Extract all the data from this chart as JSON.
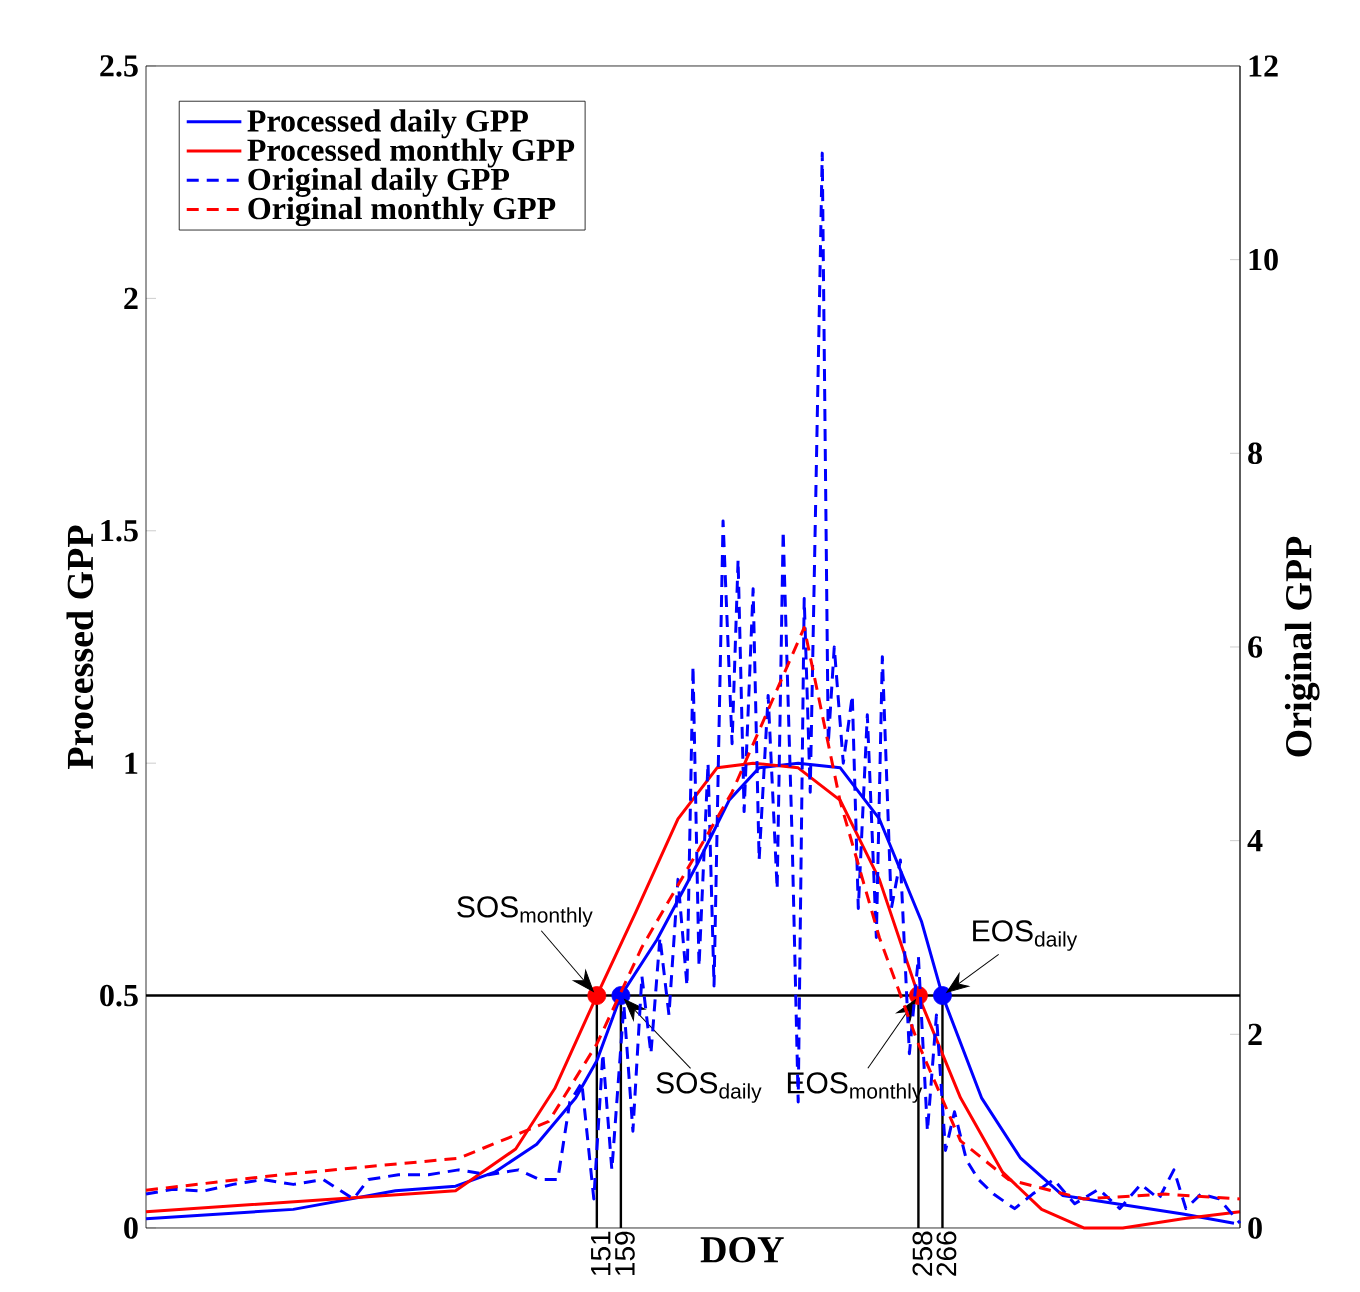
{
  "chart_data": {
    "type": "line",
    "xlabel": "DOY",
    "ylabel": "Processed GPP",
    "y2label": "Original GPP",
    "xlim": [
      1,
      365
    ],
    "xticks": [
      151,
      159,
      258,
      266
    ],
    "ylim": [
      0,
      2.5
    ],
    "yticks": [
      0,
      0.5,
      1,
      1.5,
      2,
      2.5
    ],
    "y2lim": [
      0,
      12
    ],
    "y2ticks": [
      0,
      2,
      4,
      6,
      8,
      10,
      12
    ],
    "legend": "top left",
    "marker": "none",
    "series": [
      {
        "name": "Processed daily GPP",
        "color": "#0000ff",
        "line_style": "solid",
        "x": [
          1,
          50,
          84,
          104,
          117,
          131,
          144,
          151,
          159,
          171,
          185,
          195,
          205,
          218,
          232,
          245,
          259,
          266,
          279,
          292,
          306,
          326,
          346,
          363
        ],
        "values": [
          0.02,
          0.04,
          0.08,
          0.09,
          0.12,
          0.18,
          0.28,
          0.36,
          0.5,
          0.62,
          0.79,
          0.92,
          0.99,
          1.0,
          0.99,
          0.88,
          0.66,
          0.5,
          0.28,
          0.15,
          0.07,
          0.05,
          0.03,
          0.01
        ]
      },
      {
        "name": "Processed monthly GPP",
        "color": "#ff0000",
        "line_style": "solid",
        "x": [
          1,
          104,
          124,
          137,
          151,
          164,
          178,
          191,
          203,
          218,
          232,
          245,
          258,
          272,
          286,
          299,
          313,
          326,
          346,
          365
        ],
        "values": [
          0.035,
          0.08,
          0.17,
          0.3,
          0.5,
          0.68,
          0.88,
          0.99,
          1.0,
          0.99,
          0.92,
          0.75,
          0.5,
          0.28,
          0.12,
          0.04,
          0.0,
          0.0,
          0.02,
          0.035
        ]
      },
      {
        "name": "Original daily GPP",
        "color": "#0000ff",
        "line_style": "dashed",
        "axis": "y2",
        "x": [
          1,
          10,
          20,
          30,
          40,
          50,
          60,
          70,
          75,
          85,
          95,
          105,
          115,
          125,
          132,
          138,
          142,
          146,
          150,
          153,
          156,
          160,
          163,
          166,
          169,
          172,
          175,
          178,
          181,
          183,
          185,
          188,
          190,
          193,
          196,
          198,
          200,
          203,
          205,
          208,
          211,
          213,
          216,
          218,
          220,
          222,
          224,
          226,
          228,
          230,
          233,
          236,
          238,
          241,
          244,
          246,
          249,
          252,
          255,
          258,
          261,
          264,
          267,
          270,
          274,
          278,
          283,
          290,
          296,
          303,
          310,
          318,
          325,
          332,
          338,
          343,
          347,
          352,
          358,
          365
        ],
        "values": [
          0.35,
          0.4,
          0.38,
          0.45,
          0.5,
          0.45,
          0.5,
          0.3,
          0.5,
          0.55,
          0.55,
          0.6,
          0.55,
          0.6,
          0.5,
          0.5,
          1.3,
          1.5,
          0.3,
          1.8,
          0.6,
          2.3,
          1.0,
          2.6,
          1.8,
          3.0,
          2.2,
          3.6,
          2.5,
          5.8,
          2.7,
          4.8,
          2.5,
          7.3,
          5.0,
          6.9,
          4.3,
          6.6,
          3.8,
          5.5,
          3.5,
          7.2,
          4.0,
          1.3,
          6.5,
          4.5,
          7.8,
          11.1,
          5.0,
          6.0,
          4.8,
          5.5,
          3.3,
          5.3,
          3.0,
          5.9,
          3.3,
          3.8,
          1.8,
          2.8,
          1.0,
          2.2,
          0.8,
          1.2,
          0.7,
          0.5,
          0.35,
          0.2,
          0.35,
          0.5,
          0.25,
          0.4,
          0.2,
          0.45,
          0.3,
          0.6,
          0.2,
          0.35,
          0.3,
          0.05
        ]
      },
      {
        "name": "Original monthly GPP",
        "color": "#ff0000",
        "line_style": "dashed",
        "axis": "y2",
        "x": [
          1,
          46,
          105,
          135,
          151,
          166,
          196,
          220,
          232,
          245,
          258,
          272,
          288,
          313,
          340,
          365
        ],
        "values": [
          0.39,
          0.55,
          0.72,
          1.1,
          1.9,
          2.9,
          4.5,
          6.2,
          4.4,
          3.0,
          1.9,
          0.9,
          0.5,
          0.3,
          0.35,
          0.3
        ]
      },
      {
        "type": "scatter",
        "marker": "circle",
        "color": "#ff0000",
        "x": [
          151,
          258
        ],
        "values": [
          0.5,
          0.5
        ]
      },
      {
        "type": "scatter",
        "marker": "circle",
        "color": "#0000ff",
        "x": [
          159,
          266
        ],
        "values": [
          0.5,
          0.5
        ]
      }
    ],
    "ref_lines": [
      {
        "axis": "y",
        "value": 0.5,
        "color": "#000000"
      },
      {
        "axis": "x",
        "value": 151,
        "color": "#000000"
      },
      {
        "axis": "x",
        "value": 159,
        "color": "#000000"
      },
      {
        "axis": "x",
        "value": 258,
        "color": "#000000"
      },
      {
        "axis": "x",
        "value": 266,
        "color": "#000000"
      }
    ],
    "annotations": [
      {
        "text": "SOS$_{monthly}$",
        "x": 151,
        "y": 0.5
      },
      {
        "text": "SOS$_{daily}$",
        "x": 159,
        "y": 0.5
      },
      {
        "text": "EOS$_{monthly}$",
        "x": 258,
        "y": 0.5
      },
      {
        "text": "EOS$_{daily}$",
        "x": 266,
        "y": 0.5
      }
    ]
  }
}
